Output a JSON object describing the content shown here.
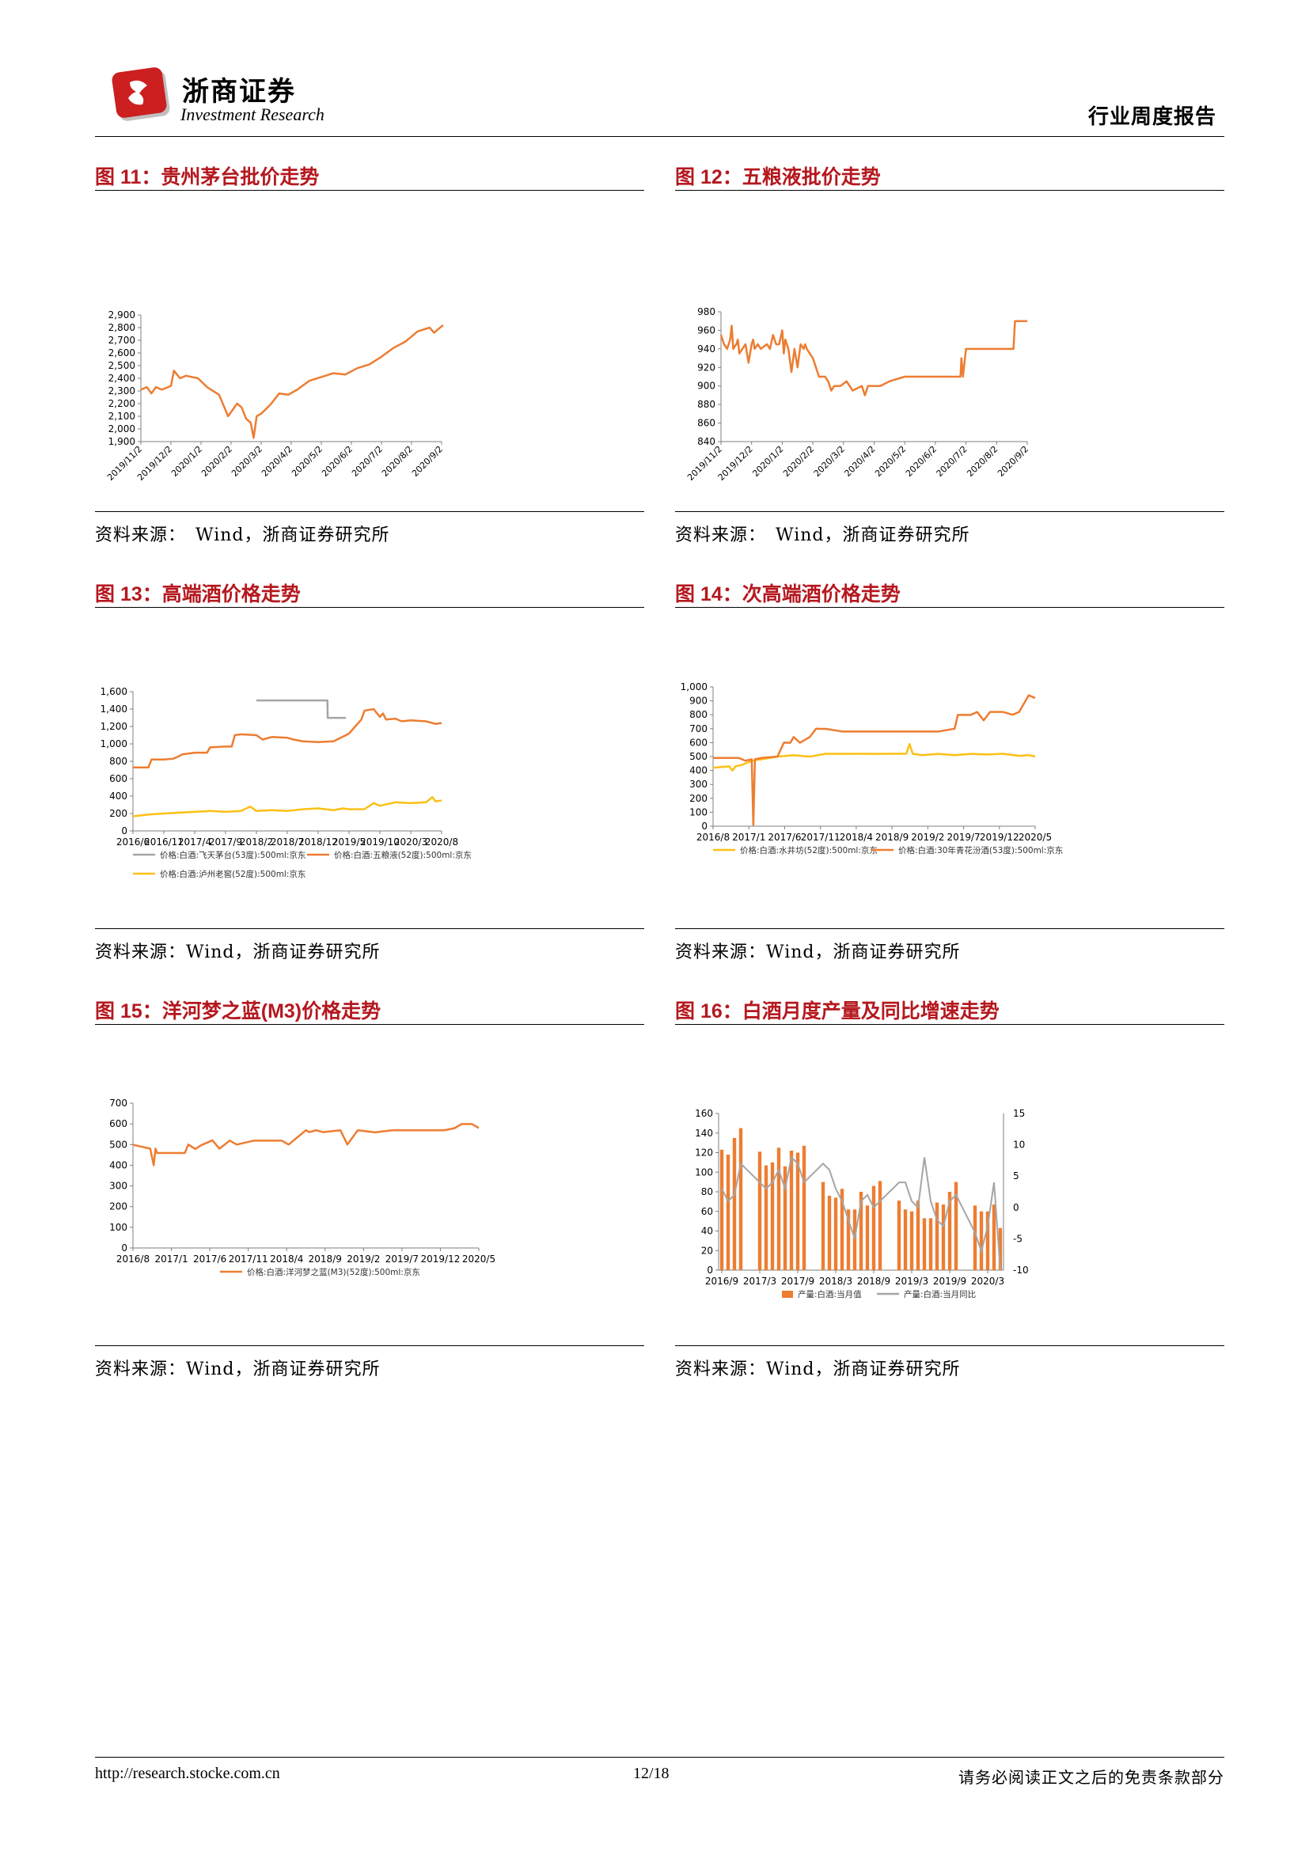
{
  "header": {
    "brand_cn": "浙商证券",
    "brand_en": "Investment Research",
    "report_type": "行业周度报告"
  },
  "colors": {
    "title_red": "#b5181f",
    "orange": "#ed7d31",
    "yellow": "#fcc015",
    "gray": "#a5a5a5"
  },
  "figures": [
    {
      "title": "图 11：贵州茅台批价走势",
      "source": "资料来源：　Wind，浙商证券研究所"
    },
    {
      "title": "图 12：五粮液批价走势",
      "source": "资料来源：　Wind，浙商证券研究所"
    },
    {
      "title": "图 13：高端酒价格走势",
      "source": "资料来源：Wind，浙商证券研究所"
    },
    {
      "title": "图 14：次高端酒价格走势",
      "source": "资料来源：Wind，浙商证券研究所"
    },
    {
      "title": "图 15：洋河梦之蓝(M3)价格走势",
      "source": "资料来源：Wind，浙商证券研究所"
    },
    {
      "title": "图 16：白酒月度产量及同比增速走势",
      "source": "资料来源：Wind，浙商证券研究所"
    }
  ],
  "chart_data": [
    {
      "id": "fig11",
      "type": "line",
      "title": "",
      "xlabel": "",
      "ylabel": "",
      "ylim": [
        1900,
        2900
      ],
      "yticks": [
        1900,
        2000,
        2100,
        2200,
        2300,
        2400,
        2500,
        2600,
        2700,
        2800,
        2900
      ],
      "x_ticks": [
        "2019/11/2",
        "2019/12/2",
        "2020/1/2",
        "2020/2/2",
        "2020/3/2",
        "2020/4/2",
        "2020/5/2",
        "2020/6/2",
        "2020/7/2",
        "2020/8/2",
        "2020/9/2"
      ],
      "grid": false,
      "legend": "none",
      "series": [
        {
          "color": "#ed7d31",
          "x": [
            0,
            0.2,
            0.35,
            0.5,
            0.7,
            1.0,
            1.1,
            1.3,
            1.5,
            1.9,
            2.2,
            2.6,
            2.9,
            3.2,
            3.35,
            3.5,
            3.65,
            3.75,
            3.85,
            4.0,
            4.3,
            4.6,
            4.9,
            5.2,
            5.6,
            6.0,
            6.4,
            6.8,
            7.2,
            7.6,
            8.0,
            8.4,
            8.8,
            9.2,
            9.6,
            9.75,
            9.9,
            10.05
          ],
          "values": [
            2310,
            2330,
            2280,
            2330,
            2310,
            2340,
            2460,
            2400,
            2420,
            2400,
            2330,
            2270,
            2100,
            2200,
            2170,
            2080,
            2050,
            1930,
            2100,
            2120,
            2190,
            2280,
            2270,
            2310,
            2380,
            2410,
            2440,
            2430,
            2480,
            2510,
            2570,
            2640,
            2690,
            2770,
            2800,
            2760,
            2790,
            2820
          ]
        }
      ]
    },
    {
      "id": "fig12",
      "type": "line",
      "title": "",
      "xlabel": "",
      "ylabel": "",
      "ylim": [
        840,
        980
      ],
      "yticks": [
        840,
        860,
        880,
        900,
        920,
        940,
        960,
        980
      ],
      "x_ticks": [
        "2019/11/2",
        "2019/12/2",
        "2020/1/2",
        "2020/2/2",
        "2020/3/2",
        "2020/4/2",
        "2020/5/2",
        "2020/6/2",
        "2020/7/2",
        "2020/8/2",
        "2020/9/2"
      ],
      "grid": false,
      "legend": "none",
      "series": [
        {
          "color": "#ed7d31",
          "x": [
            0,
            0.1,
            0.2,
            0.3,
            0.35,
            0.4,
            0.5,
            0.55,
            0.6,
            0.7,
            0.8,
            0.9,
            1.0,
            1.05,
            1.1,
            1.2,
            1.3,
            1.5,
            1.6,
            1.7,
            1.8,
            1.9,
            2.0,
            2.05,
            2.1,
            2.2,
            2.3,
            2.4,
            2.5,
            2.6,
            2.7,
            2.75,
            2.8,
            2.9,
            3.0,
            3.2,
            3.3,
            3.4,
            3.5,
            3.6,
            3.7,
            3.9,
            4.1,
            4.3,
            4.6,
            4.7,
            4.8,
            4.9,
            5.2,
            5.5,
            6.0,
            6.5,
            7.0,
            7.5,
            7.8,
            7.82,
            7.85,
            7.9,
            8.0,
            8.5,
            9.0,
            9.5,
            9.55,
            9.6,
            10.0
          ],
          "values": [
            955,
            945,
            940,
            950,
            965,
            940,
            945,
            950,
            935,
            940,
            945,
            925,
            945,
            950,
            940,
            945,
            940,
            945,
            940,
            955,
            945,
            945,
            960,
            935,
            950,
            940,
            915,
            940,
            920,
            945,
            940,
            945,
            940,
            935,
            930,
            910,
            910,
            910,
            905,
            895,
            900,
            900,
            905,
            895,
            900,
            890,
            900,
            900,
            900,
            905,
            910,
            910,
            910,
            910,
            910,
            910,
            930,
            910,
            940,
            940,
            940,
            940,
            940,
            970,
            970
          ]
        }
      ]
    },
    {
      "id": "fig13",
      "type": "line",
      "title": "",
      "xlabel": "",
      "ylabel": "",
      "ylim": [
        0,
        1600
      ],
      "yticks": [
        0,
        200,
        400,
        600,
        800,
        1000,
        1200,
        1400,
        1600
      ],
      "x_ticks": [
        "2016/6",
        "2016/11",
        "2017/4",
        "2017/9",
        "2018/2",
        "2018/7",
        "2018/12",
        "2019/5",
        "2019/10",
        "2020/3",
        "2020/8"
      ],
      "grid": false,
      "legend": "bottom",
      "series": [
        {
          "name": "价格:白酒:飞天茅台(53度):500ml:京东",
          "color": "#a5a5a5",
          "x": [
            4.0,
            4.5,
            5.0,
            5.5,
            6.0,
            6.3,
            6.31,
            6.5,
            6.8,
            6.9
          ],
          "values": [
            1499,
            1499,
            1499,
            1499,
            1499,
            1499,
            1299,
            1299,
            1299,
            1299
          ]
        },
        {
          "name": "价格:白酒:五粮液(52度):500ml:京东",
          "color": "#ed7d31",
          "x": [
            0,
            0.5,
            0.6,
            1.0,
            1.3,
            1.5,
            1.6,
            2.0,
            2.4,
            2.5,
            3.0,
            3.2,
            3.3,
            3.5,
            4.0,
            4.2,
            4.5,
            5.0,
            5.2,
            5.5,
            6.0,
            6.5,
            6.9,
            7.0,
            7.2,
            7.4,
            7.5,
            7.6,
            7.8,
            8.0,
            8.1,
            8.2,
            8.5,
            8.7,
            9.0,
            9.5,
            9.8,
            10.0
          ],
          "values": [
            729,
            729,
            820,
            820,
            829,
            860,
            880,
            899,
            899,
            960,
            969,
            969,
            1100,
            1110,
            1100,
            1050,
            1079,
            1070,
            1050,
            1030,
            1020,
            1030,
            1100,
            1119,
            1200,
            1280,
            1380,
            1389,
            1399,
            1310,
            1350,
            1280,
            1290,
            1260,
            1270,
            1259,
            1230,
            1240
          ]
        },
        {
          "name": "价格:白酒:泸州老窖(52度):500ml:京东",
          "color": "#fcc015",
          "x": [
            0,
            0.5,
            1.0,
            1.5,
            2.0,
            2.5,
            3.0,
            3.5,
            3.8,
            4.0,
            4.5,
            5.0,
            5.5,
            6.0,
            6.5,
            6.8,
            7.0,
            7.5,
            7.8,
            8.0,
            8.5,
            9.0,
            9.5,
            9.7,
            9.8,
            10.0
          ],
          "values": [
            168,
            189,
            200,
            210,
            219,
            229,
            219,
            229,
            280,
            229,
            239,
            229,
            249,
            259,
            239,
            259,
            249,
            250,
            320,
            289,
            329,
            319,
            330,
            389,
            340,
            350
          ]
        }
      ]
    },
    {
      "id": "fig14",
      "type": "line",
      "title": "",
      "xlabel": "",
      "ylabel": "",
      "ylim": [
        0,
        1000
      ],
      "yticks": [
        0,
        100,
        200,
        300,
        400,
        500,
        600,
        700,
        800,
        900,
        1000
      ],
      "x_ticks": [
        "2016/8",
        "2017/1",
        "2017/6",
        "2017/11",
        "2018/4",
        "2018/9",
        "2019/2",
        "2019/7",
        "2019/12",
        "2020/5"
      ],
      "grid": false,
      "legend": "bottom",
      "series": [
        {
          "name": "价格:白酒:水井坊(52度):500ml:京东",
          "color": "#fcc015",
          "x": [
            0,
            0.5,
            0.6,
            0.7,
            0.9,
            1.2,
            1.5,
            2.0,
            2.5,
            3.0,
            3.5,
            4.0,
            4.5,
            5.0,
            5.5,
            6.0,
            6.1,
            6.2,
            6.5,
            7.0,
            7.5,
            8.0,
            8.5,
            9.0,
            9.5,
            9.8,
            10.0
          ],
          "values": [
            420,
            430,
            400,
            430,
            440,
            470,
            480,
            499,
            510,
            499,
            520,
            519,
            520,
            519,
            520,
            520,
            590,
            520,
            510,
            519,
            510,
            519,
            515,
            520,
            505,
            510,
            500
          ]
        },
        {
          "name": "价格:白酒:30年青花汾酒(53度):500ml:京东",
          "color": "#ed7d31",
          "x": [
            0,
            0.8,
            1.0,
            1.2,
            1.25,
            1.3,
            1.5,
            2.0,
            2.2,
            2.4,
            2.5,
            2.7,
            3.0,
            3.2,
            3.3,
            3.5,
            4.0,
            4.5,
            5.0,
            5.5,
            6.0,
            6.5,
            7.0,
            7.5,
            7.6,
            8.0,
            8.2,
            8.4,
            8.6,
            9.0,
            9.3,
            9.5,
            9.7,
            9.8,
            10.0
          ],
          "values": [
            490,
            490,
            470,
            480,
            10,
            480,
            490,
            500,
            600,
            599,
            640,
            599,
            640,
            700,
            699,
            699,
            680,
            680,
            680,
            680,
            680,
            680,
            680,
            700,
            799,
            799,
            820,
            760,
            820,
            820,
            800,
            820,
            900,
            940,
            920
          ]
        }
      ]
    },
    {
      "id": "fig15",
      "type": "line",
      "title": "",
      "xlabel": "",
      "ylabel": "",
      "ylim": [
        0,
        700
      ],
      "yticks": [
        0,
        100,
        200,
        300,
        400,
        500,
        600,
        700
      ],
      "x_ticks": [
        "2016/8",
        "2017/1",
        "2017/6",
        "2017/11",
        "2018/4",
        "2018/9",
        "2019/2",
        "2019/7",
        "2019/12",
        "2020/5"
      ],
      "grid": false,
      "legend": "bottom",
      "series": [
        {
          "name": "价格:白酒:洋河梦之蓝(M3)(52度):500ml:京东",
          "color": "#ed7d31",
          "x": [
            0,
            0.5,
            0.6,
            0.65,
            0.7,
            1.0,
            1.5,
            1.6,
            1.8,
            2.0,
            2.3,
            2.5,
            2.8,
            3.0,
            3.5,
            4.0,
            4.3,
            4.5,
            5.0,
            5.1,
            5.3,
            5.5,
            6.0,
            6.2,
            6.5,
            7.0,
            7.5,
            8.0,
            8.5,
            9.0,
            9.3,
            9.5,
            9.8,
            10.0
          ],
          "values": [
            499,
            480,
            400,
            480,
            459,
            459,
            459,
            500,
            479,
            499,
            520,
            480,
            519,
            500,
            519,
            519,
            519,
            500,
            569,
            560,
            569,
            560,
            569,
            500,
            569,
            559,
            569,
            569,
            569,
            569,
            579,
            599,
            599,
            580
          ]
        }
      ]
    },
    {
      "id": "fig16",
      "type": "bar",
      "title": "",
      "xlabel": "",
      "ylabel": "",
      "ylim": [
        0,
        160
      ],
      "yticks": [
        0,
        20,
        40,
        60,
        80,
        100,
        120,
        140,
        160
      ],
      "y2lim": [
        -10,
        15
      ],
      "y2ticks": [
        -10,
        -5,
        0,
        5,
        10,
        15
      ],
      "x_ticks": [
        "2016/9",
        "2017/3",
        "2017/9",
        "2018/3",
        "2018/9",
        "2019/3",
        "2019/9",
        "2020/3"
      ],
      "grid": false,
      "legend": "bottom",
      "series": [
        {
          "name": "产量:白酒:当月值",
          "color": "#ed7d31",
          "kind": "bar",
          "values": [
            123,
            118,
            135,
            145,
            null,
            null,
            121,
            107,
            110,
            125,
            106,
            122,
            120,
            127,
            null,
            null,
            90,
            76,
            74,
            83,
            62,
            62,
            80,
            66,
            86,
            91,
            null,
            null,
            71,
            62,
            60,
            71,
            53,
            53,
            69,
            67,
            80,
            90,
            null,
            null,
            66,
            60,
            60,
            67,
            43
          ]
        },
        {
          "name": "产量:白酒:当月同比",
          "color": "#a5a5a5",
          "kind": "line",
          "values": [
            3,
            1,
            2,
            7,
            6,
            5,
            4,
            3,
            4,
            6,
            3,
            8,
            7,
            4,
            5,
            6,
            7,
            6,
            3,
            1,
            -2,
            -5,
            1,
            2,
            0,
            1,
            2,
            3,
            4,
            4,
            1,
            0,
            8,
            1,
            -2,
            -3,
            1,
            2,
            0,
            -2,
            -4,
            -7,
            -3,
            4,
            -10
          ]
        }
      ]
    }
  ],
  "footer": {
    "url": "http://research.stocke.com.cn",
    "page": "12/18",
    "disclaimer": "请务必阅读正文之后的免责条款部分"
  }
}
